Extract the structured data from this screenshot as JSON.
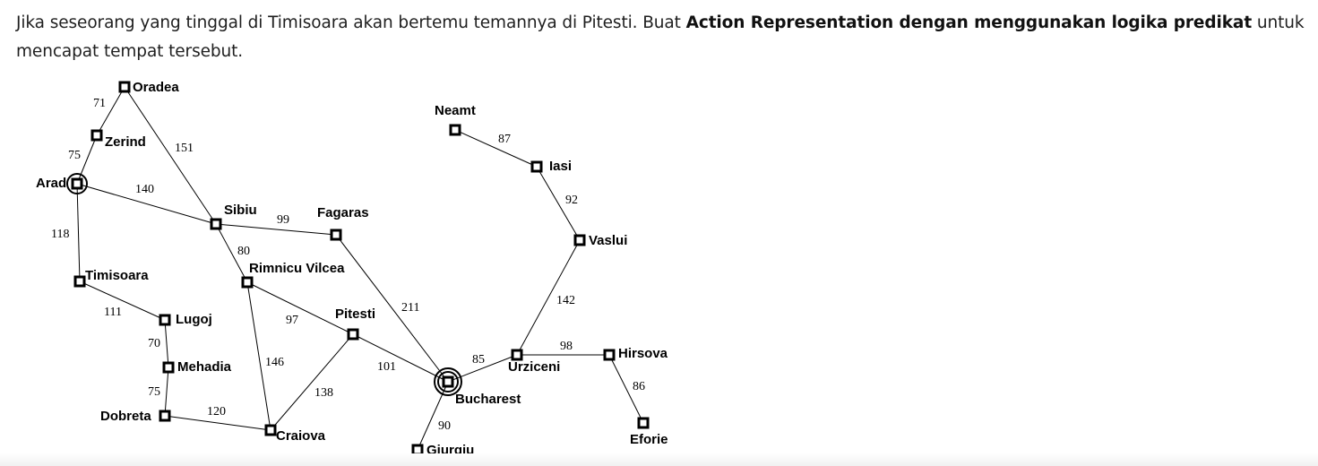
{
  "question": {
    "text_before": "Jika seseorang yang tinggal di Timisoara akan bertemu temannya di Pitesti. Buat ",
    "text_bold": "Action Representation dengan menggunakan logika predikat",
    "text_after": " untuk mencapat tempat tersebut."
  },
  "map": {
    "cities": {
      "oradea": "Oradea",
      "zerind": "Zerind",
      "arad": "Arad",
      "sibiu": "Sibiu",
      "fagaras": "Fagaras",
      "timisoara": "Timisoara",
      "rimnicu": "Rimnicu Vilcea",
      "lugoj": "Lugoj",
      "pitesti": "Pitesti",
      "mehadia": "Mehadia",
      "dobreta": "Dobreta",
      "craiova": "Craiova",
      "bucharest": "Bucharest",
      "giurgiu": "Giurgiu",
      "neamt": "Neamt",
      "iasi": "Iasi",
      "vaslui": "Vaslui",
      "urziceni": "Urziceni",
      "hirsova": "Hirsova",
      "eforie": "Eforie"
    },
    "distances": {
      "oradea_zerind": "71",
      "zerind_arad": "75",
      "oradea_sibiu": "151",
      "arad_sibiu": "140",
      "arad_timisoara": "118",
      "sibiu_fagaras": "99",
      "sibiu_rimnicu": "80",
      "timisoara_lugoj": "111",
      "rimnicu_pitesti": "97",
      "fagaras_bucharest": "211",
      "lugoj_mehadia": "70",
      "rimnicu_craiova": "146",
      "pitesti_bucharest": "101",
      "mehadia_dobreta": "75",
      "pitesti_craiova": "138",
      "dobreta_craiova": "120",
      "bucharest_giurgiu": "90",
      "bucharest_urziceni": "85",
      "neamt_iasi": "87",
      "iasi_vaslui": "92",
      "vaslui_urziceni": "142",
      "urziceni_hirsova": "98",
      "hirsova_eforie": "86"
    }
  }
}
